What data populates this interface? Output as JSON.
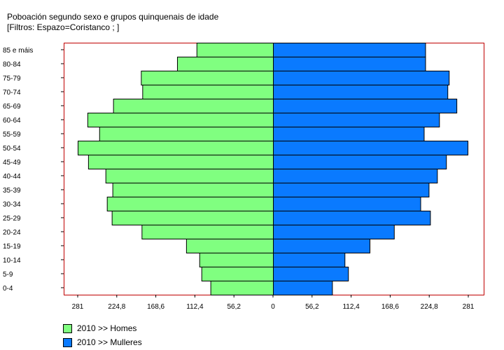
{
  "title": "Poboación segundo sexo e grupos quinquenais de idade",
  "subtitle": "[Filtros: Espazo=Coristanco ; ]",
  "chart_data": {
    "type": "bar",
    "orientation": "horizontal-population-pyramid",
    "categories": [
      "0-4",
      "5-9",
      "10-14",
      "15-19",
      "20-24",
      "25-29",
      "30-34",
      "35-39",
      "40-44",
      "45-49",
      "50-54",
      "55-59",
      "60-64",
      "65-69",
      "70-74",
      "75-79",
      "80-84",
      "85 e máis"
    ],
    "series": [
      {
        "name": "2010 >> Homes",
        "color": "#80ff80",
        "direction": "left",
        "values": [
          90,
          103,
          106,
          125,
          189,
          232,
          239,
          231,
          241,
          266,
          281,
          250,
          267,
          230,
          188,
          190,
          138,
          110
        ]
      },
      {
        "name": "2010 >> Mulleres",
        "color": "#0a7aff",
        "direction": "right",
        "values": [
          85,
          108,
          103,
          139,
          174,
          226,
          212,
          224,
          236,
          249,
          280,
          217,
          239,
          264,
          251,
          253,
          219,
          219
        ]
      }
    ],
    "xlim": [
      -281,
      281
    ],
    "x_ticks": [
      "281",
      "224,8",
      "168,6",
      "112,4",
      "56,2",
      "0",
      "56,2",
      "112,4",
      "168,6",
      "224,8",
      "281"
    ],
    "x_tick_values": [
      -281,
      -224.8,
      -168.6,
      -112.4,
      -56.2,
      0,
      56.2,
      112.4,
      168.6,
      224.8,
      281
    ],
    "frame_color": "#c00000",
    "grid": false,
    "legend_position": "bottom-left"
  }
}
